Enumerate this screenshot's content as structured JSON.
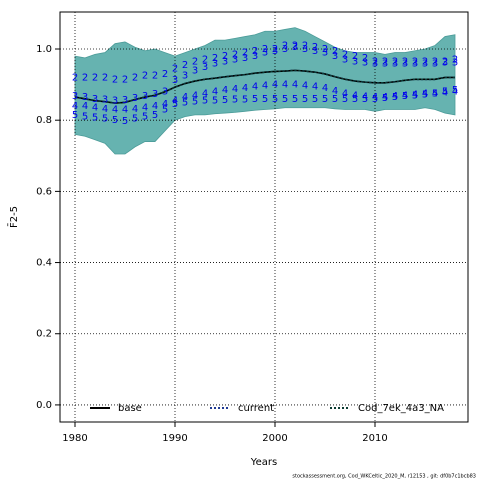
{
  "chart_data": {
    "type": "line",
    "xlabel": "Years",
    "ylabel": "F̄2-5",
    "footer": "stockassessment.org, Cod_WKCeltic_2020_M, r12153 , git: df0b7c1bcb83",
    "x": [
      1980,
      1981,
      1982,
      1983,
      1984,
      1985,
      1986,
      1987,
      1988,
      1989,
      1990,
      1991,
      1992,
      1993,
      1994,
      1995,
      1996,
      1997,
      1998,
      1999,
      2000,
      2001,
      2002,
      2003,
      2004,
      2005,
      2006,
      2007,
      2008,
      2009,
      2010,
      2011,
      2012,
      2013,
      2014,
      2015,
      2016,
      2017,
      2018
    ],
    "xlim": [
      1978.5,
      2019.3
    ],
    "xticks": [
      1980,
      1990,
      2000,
      2010
    ],
    "ylim": [
      -0.048,
      1.104
    ],
    "yticks": [
      {
        "value": 0,
        "label": "0.0"
      },
      0.2,
      0.4,
      0.6,
      0.8,
      {
        "value": 1,
        "label": "1.0"
      }
    ],
    "grid": true,
    "legend": "bottom",
    "band": {
      "color": "#66b3b0",
      "upper": [
        0.98,
        0.975,
        0.985,
        0.99,
        1.015,
        1.02,
        1.005,
        0.995,
        1.0,
        0.99,
        0.98,
        0.99,
        1.0,
        1.01,
        1.025,
        1.025,
        1.03,
        1.035,
        1.04,
        1.05,
        1.05,
        1.055,
        1.06,
        1.05,
        1.035,
        1.02,
        1.005,
        0.995,
        0.99,
        0.99,
        0.99,
        0.985,
        0.99,
        0.99,
        0.995,
        1.0,
        1.01,
        1.035,
        1.04
      ],
      "lower": [
        0.76,
        0.755,
        0.745,
        0.735,
        0.705,
        0.705,
        0.725,
        0.74,
        0.74,
        0.77,
        0.8,
        0.81,
        0.815,
        0.815,
        0.818,
        0.82,
        0.822,
        0.825,
        0.828,
        0.83,
        0.832,
        0.835,
        0.835,
        0.835,
        0.835,
        0.835,
        0.832,
        0.83,
        0.83,
        0.83,
        0.825,
        0.83,
        0.83,
        0.83,
        0.83,
        0.835,
        0.83,
        0.82,
        0.815
      ]
    },
    "series": [
      {
        "name": "base",
        "color": "#000000",
        "dash": "none",
        "values": [
          0.865,
          0.86,
          0.855,
          0.852,
          0.848,
          0.85,
          0.858,
          0.865,
          0.87,
          0.88,
          0.893,
          0.903,
          0.91,
          0.915,
          0.918,
          0.922,
          0.925,
          0.928,
          0.932,
          0.935,
          0.937,
          0.938,
          0.94,
          0.938,
          0.935,
          0.93,
          0.922,
          0.915,
          0.91,
          0.907,
          0.905,
          0.905,
          0.908,
          0.912,
          0.915,
          0.915,
          0.915,
          0.92,
          0.92
        ]
      },
      {
        "name": "current",
        "color": "#1f3a93",
        "dash": "2,2",
        "values": [
          0.865,
          0.86,
          0.855,
          0.852,
          0.848,
          0.85,
          0.858,
          0.865,
          0.87,
          0.88,
          0.893,
          0.903,
          0.91,
          0.915,
          0.918,
          0.922,
          0.925,
          0.928,
          0.932,
          0.935,
          0.937,
          0.938,
          0.94,
          0.938,
          0.935,
          0.93,
          0.922,
          0.915,
          0.91,
          0.907,
          0.905,
          0.905,
          0.908,
          0.912,
          0.915,
          0.915,
          0.915,
          0.92,
          0.92
        ]
      },
      {
        "name": "Cod_7ek_4a3_NA",
        "color": "#0a3a30",
        "dash": "2,2",
        "values": [
          0.865,
          0.86,
          0.855,
          0.852,
          0.848,
          0.85,
          0.858,
          0.865,
          0.87,
          0.88,
          0.893,
          0.903,
          0.91,
          0.915,
          0.918,
          0.922,
          0.925,
          0.928,
          0.932,
          0.935,
          0.937,
          0.938,
          0.94,
          0.938,
          0.935,
          0.93,
          0.922,
          0.915,
          0.91,
          0.907,
          0.905,
          0.905,
          0.908,
          0.912,
          0.915,
          0.915,
          0.915,
          0.92,
          0.92
        ]
      }
    ],
    "markers": [
      {
        "marker": "2",
        "color": "#0000ee",
        "values": [
          0.92,
          0.92,
          0.92,
          0.92,
          0.915,
          0.915,
          0.92,
          0.925,
          0.925,
          0.93,
          0.945,
          0.955,
          0.965,
          0.97,
          0.975,
          0.98,
          0.985,
          0.99,
          0.995,
          1.0,
          1.0,
          1.01,
          1.01,
          1.01,
          1.005,
          1.0,
          0.995,
          0.985,
          0.98,
          0.975,
          0.965,
          0.965,
          0.965,
          0.965,
          0.965,
          0.965,
          0.965,
          0.965,
          0.97
        ]
      },
      {
        "marker": "3",
        "color": "#0000ee",
        "values": [
          0.868,
          0.865,
          0.86,
          0.858,
          0.855,
          0.857,
          0.862,
          0.868,
          0.873,
          0.88,
          0.913,
          0.925,
          0.94,
          0.95,
          0.96,
          0.965,
          0.97,
          0.975,
          0.98,
          0.99,
          0.995,
          1.0,
          1.005,
          1.0,
          0.995,
          0.99,
          0.98,
          0.97,
          0.965,
          0.962,
          0.96,
          0.96,
          0.96,
          0.96,
          0.96,
          0.96,
          0.96,
          0.962,
          0.962
        ]
      },
      {
        "marker": "4",
        "color": "#0000ee",
        "values": [
          0.84,
          0.84,
          0.835,
          0.832,
          0.83,
          0.83,
          0.832,
          0.835,
          0.84,
          0.845,
          0.855,
          0.865,
          0.87,
          0.875,
          0.88,
          0.885,
          0.888,
          0.89,
          0.895,
          0.898,
          0.9,
          0.9,
          0.9,
          0.898,
          0.895,
          0.89,
          0.882,
          0.875,
          0.87,
          0.867,
          0.865,
          0.865,
          0.868,
          0.87,
          0.872,
          0.875,
          0.875,
          0.878,
          0.88
        ]
      },
      {
        "marker": "5",
        "color": "#0000ee",
        "values": [
          0.815,
          0.81,
          0.808,
          0.805,
          0.8,
          0.798,
          0.805,
          0.81,
          0.815,
          0.83,
          0.845,
          0.85,
          0.852,
          0.855,
          0.856,
          0.857,
          0.858,
          0.858,
          0.859,
          0.86,
          0.86,
          0.86,
          0.86,
          0.86,
          0.86,
          0.86,
          0.86,
          0.86,
          0.86,
          0.86,
          0.86,
          0.862,
          0.865,
          0.868,
          0.87,
          0.872,
          0.875,
          0.88,
          0.885
        ]
      }
    ]
  }
}
